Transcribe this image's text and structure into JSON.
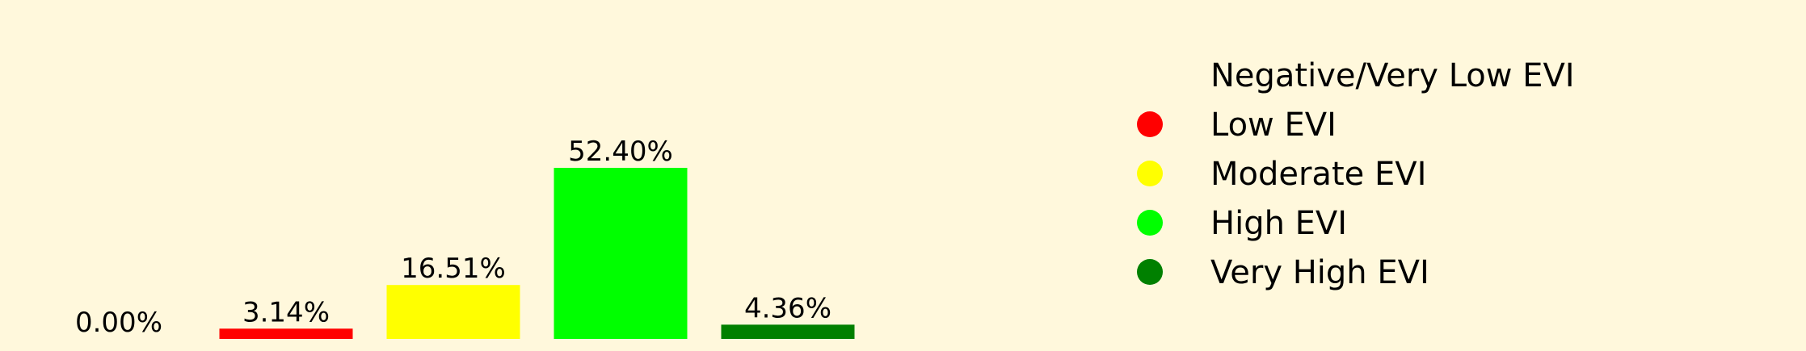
{
  "colors": {
    "background": "#FFF8DC"
  },
  "chart_data": {
    "type": "bar",
    "categories": [
      "Negative/Very Low EVI",
      "Low EVI",
      "Moderate EVI",
      "High EVI",
      "Very High EVI"
    ],
    "values": [
      0.0,
      3.14,
      16.51,
      52.4,
      4.36
    ],
    "value_labels": [
      "0.00%",
      "3.14%",
      "16.51%",
      "52.40%",
      "4.36%"
    ],
    "colors": [
      "#FFF8DC",
      "#FF0000",
      "#FFFF00",
      "#00FF00",
      "#008000"
    ],
    "ylim": [
      0,
      52.4
    ],
    "legend": {
      "placement": "right",
      "entries": [
        "Negative/Very Low EVI",
        "Low EVI",
        "Moderate EVI",
        "High EVI",
        "Very High EVI"
      ]
    },
    "grid": false
  }
}
